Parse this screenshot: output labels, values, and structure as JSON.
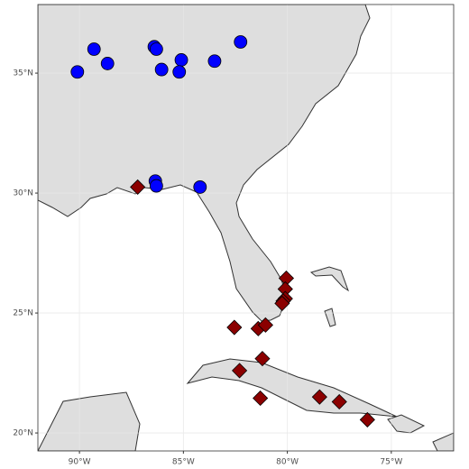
{
  "map": {
    "xlim": [
      -92,
      -72
    ],
    "ylim": [
      19.25,
      37.86
    ],
    "xticks": [
      {
        "value": -90,
        "label": "90°W"
      },
      {
        "value": -85,
        "label": "85°W"
      },
      {
        "value": -80,
        "label": "80°W"
      },
      {
        "value": -75,
        "label": "75°W"
      }
    ],
    "yticks": [
      {
        "value": 20,
        "label": "20°N"
      },
      {
        "value": 25,
        "label": "25°N"
      },
      {
        "value": 30,
        "label": "30°N"
      },
      {
        "value": 35,
        "label": "35°N"
      }
    ],
    "grid": true,
    "groups": [
      {
        "shape": "circle",
        "color": "#0000ff",
        "lon": [
          -89.3,
          -90.1,
          -88.65,
          -86.4,
          -86.3,
          -86.05,
          -85.1,
          -85.2,
          -83.5,
          -82.25,
          -86.35,
          -86.3,
          -84.2
        ],
        "lat": [
          36.0,
          35.05,
          35.4,
          36.1,
          36.0,
          35.15,
          35.55,
          35.05,
          35.5,
          36.3,
          30.5,
          30.3,
          30.25
        ]
      },
      {
        "shape": "diamond",
        "color": "#8b0000",
        "lon": [
          -87.2,
          -80.05,
          -80.1,
          -80.1,
          -80.2,
          -80.25,
          -82.55,
          -81.4,
          -81.05,
          -81.2,
          -82.3,
          -81.3,
          -78.45,
          -77.5,
          -76.15
        ],
        "lat": [
          30.25,
          26.45,
          26.0,
          25.6,
          25.5,
          25.4,
          24.4,
          24.35,
          24.5,
          23.1,
          22.6,
          21.45,
          21.5,
          21.3,
          20.55
        ]
      }
    ]
  }
}
